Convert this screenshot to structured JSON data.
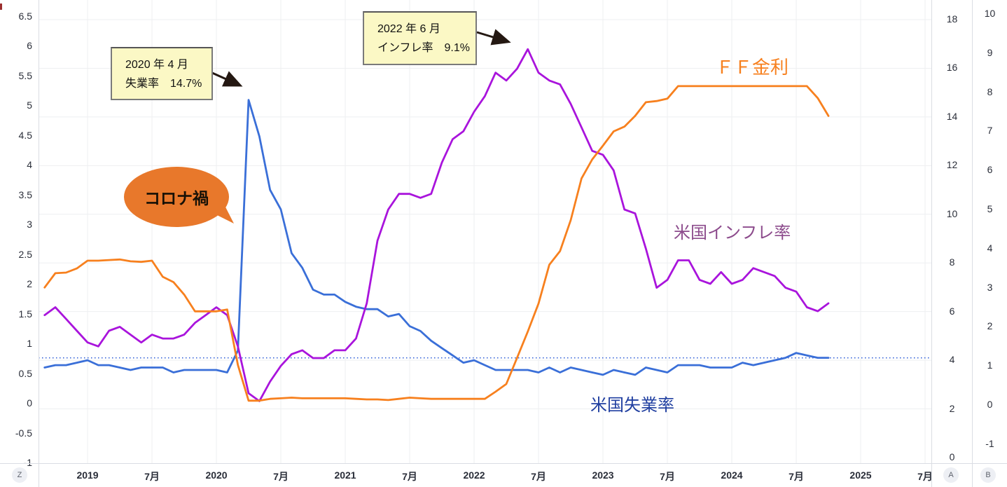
{
  "chart_data": {
    "type": "line",
    "x_start": "2018-09",
    "x_frequency": "monthly",
    "x_tick_labels": [
      "2019",
      "7月",
      "2020",
      "7月",
      "2021",
      "7月",
      "2022",
      "7月",
      "2023",
      "7月",
      "2024",
      "7月",
      "2025",
      "7月"
    ],
    "left_axis_ticks": [
      6.5,
      6,
      5.5,
      5,
      4.5,
      4,
      3.5,
      3,
      2.5,
      2,
      1.5,
      1,
      0.5,
      0,
      -0.5,
      -1
    ],
    "right_axis_a_ticks": [
      18,
      16,
      14,
      12,
      10,
      8,
      6,
      4,
      2,
      0
    ],
    "right_axis_b_ticks": [
      10,
      9,
      8,
      7,
      6,
      5,
      4,
      3,
      2,
      1,
      0,
      -1
    ],
    "grid": true,
    "legend_position": "inline-labels",
    "series": [
      {
        "name": "米国失業率",
        "axis": "right_a",
        "color": "#3a6fd8",
        "values": [
          3.7,
          3.8,
          3.8,
          3.9,
          4.0,
          3.8,
          3.8,
          3.7,
          3.6,
          3.7,
          3.7,
          3.7,
          3.5,
          3.6,
          3.6,
          3.6,
          3.6,
          3.5,
          4.4,
          14.7,
          13.2,
          11.0,
          10.2,
          8.4,
          7.8,
          6.9,
          6.7,
          6.7,
          6.4,
          6.2,
          6.1,
          6.1,
          5.8,
          5.9,
          5.4,
          5.2,
          4.8,
          4.5,
          4.2,
          3.9,
          4.0,
          3.8,
          3.6,
          3.6,
          3.6,
          3.6,
          3.5,
          3.7,
          3.5,
          3.7,
          3.6,
          3.5,
          3.4,
          3.6,
          3.5,
          3.4,
          3.7,
          3.6,
          3.5,
          3.8,
          3.8,
          3.8,
          3.7,
          3.7,
          3.7,
          3.9,
          3.8,
          3.9,
          4.0,
          4.1,
          4.3,
          4.2,
          4.1,
          4.1
        ]
      },
      {
        "name": "米国インフレ率",
        "axis": "right_b",
        "color": "#a914dc",
        "values": [
          2.3,
          2.5,
          2.2,
          1.9,
          1.6,
          1.5,
          1.9,
          2.0,
          1.8,
          1.6,
          1.8,
          1.7,
          1.7,
          1.8,
          2.1,
          2.3,
          2.5,
          2.3,
          1.5,
          0.3,
          0.1,
          0.6,
          1.0,
          1.3,
          1.4,
          1.2,
          1.2,
          1.4,
          1.4,
          1.7,
          2.6,
          4.2,
          5.0,
          5.4,
          5.4,
          5.3,
          5.4,
          6.2,
          6.8,
          7.0,
          7.5,
          7.9,
          8.5,
          8.3,
          8.6,
          9.1,
          8.5,
          8.3,
          8.2,
          7.7,
          7.1,
          6.5,
          6.4,
          6.0,
          5.0,
          4.9,
          4.0,
          3.0,
          3.2,
          3.7,
          3.7,
          3.2,
          3.1,
          3.4,
          3.1,
          3.2,
          3.5,
          3.4,
          3.3,
          3.0,
          2.9,
          2.5,
          2.4,
          2.6
        ]
      },
      {
        "name": "ＦＦ金利",
        "axis": "left",
        "color": "#f7801e",
        "values": [
          1.95,
          2.19,
          2.2,
          2.27,
          2.4,
          2.4,
          2.41,
          2.42,
          2.39,
          2.38,
          2.4,
          2.13,
          2.04,
          1.83,
          1.55,
          1.55,
          1.55,
          1.58,
          0.65,
          0.05,
          0.05,
          0.08,
          0.09,
          0.1,
          0.09,
          0.09,
          0.09,
          0.09,
          0.09,
          0.08,
          0.07,
          0.07,
          0.06,
          0.08,
          0.1,
          0.09,
          0.08,
          0.08,
          0.08,
          0.08,
          0.08,
          0.08,
          0.2,
          0.33,
          0.77,
          1.21,
          1.68,
          2.33,
          2.56,
          3.08,
          3.78,
          4.1,
          4.33,
          4.57,
          4.65,
          4.83,
          5.06,
          5.08,
          5.12,
          5.33,
          5.33,
          5.33,
          5.33,
          5.33,
          5.33,
          5.33,
          5.33,
          5.33,
          5.33,
          5.33,
          5.33,
          5.33,
          5.13,
          4.83
        ]
      }
    ],
    "reference_line": {
      "axis": "right_a",
      "value": 4.1,
      "style": "dotted",
      "color": "#3563d8"
    }
  },
  "series_labels": {
    "ff": {
      "text": "ＦＦ金利",
      "color": "#f7801e"
    },
    "inflation": {
      "text": "米国インフレ率",
      "color": "#8c4b8c"
    },
    "unemployment": {
      "text": "米国失業率",
      "color": "#203fa0"
    }
  },
  "annotations": {
    "box_2020": {
      "line1": "2020 年 4 月",
      "line2": "失業率　14.7%"
    },
    "box_2022": {
      "line1": "2022 年 6 月",
      "line2": "インフレ率　9.1%"
    },
    "bubble": {
      "text": "コロナ禍",
      "fill": "#e8782b"
    },
    "arrow_color": "#241812"
  },
  "toolbar": {
    "z_label": "Z",
    "a_label": "A",
    "b_label": "B"
  }
}
